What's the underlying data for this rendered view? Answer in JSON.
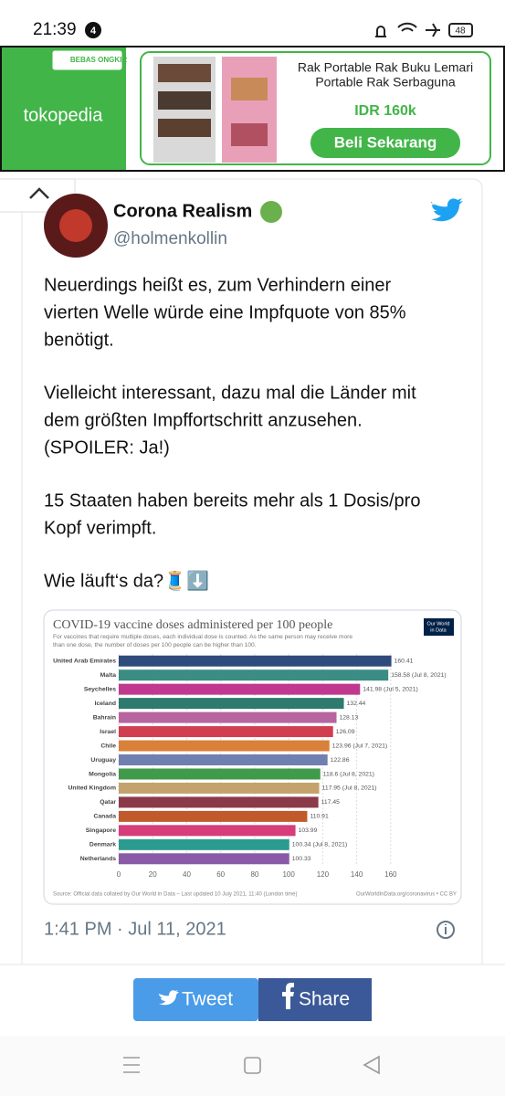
{
  "status_bar": {
    "time": "21:39",
    "notifications": "4",
    "battery": "48"
  },
  "ad": {
    "badge": "BEBAS ONGKIR",
    "brand": "tokopedia",
    "product_lines": [
      "Rak Portable Rak Buku Lemari",
      "Portable Rak Serbaguna"
    ],
    "price": "IDR 160k",
    "button": "Beli Sekarang"
  },
  "tweet": {
    "name": "Corona Realism",
    "handle": "@holmenkollin",
    "paragraphs": [
      [
        "Neuerdings heißt es, zum Verhindern einer",
        "vierten Welle würde eine Impfquote von 85%",
        "benötigt."
      ],
      [
        "Vielleicht interessant, dazu mal die Länder mit",
        "dem größten Impffortschritt anzusehen.",
        "(SPOILER: Ja!)"
      ],
      [
        "15 Staaten haben bereits mehr als 1 Dosis/pro",
        "Kopf verimpft."
      ],
      [
        "Wie läuft‘s da?🧵⬇️"
      ]
    ],
    "timestamp": "1:41 PM · Jul 11, 2021"
  },
  "chart_data": {
    "type": "bar",
    "orientation": "horizontal",
    "title": "COVID-19 vaccine doses administered per 100 people",
    "subtitle": [
      "For vaccines that require multiple doses, each individual dose is counted. As the same person may receive more",
      "than one dose, the number of doses per 100 people can be higher than 100."
    ],
    "logo": [
      "Our World",
      "in Data"
    ],
    "categories": [
      "United Arab Emirates",
      "Malta",
      "Seychelles",
      "Iceland",
      "Bahrain",
      "Israel",
      "Chile",
      "Uruguay",
      "Mongolia",
      "United Kingdom",
      "Qatar",
      "Canada",
      "Singapore",
      "Denmark",
      "Netherlands"
    ],
    "values": [
      160.41,
      158.58,
      141.98,
      132.44,
      128.13,
      126.09,
      123.96,
      122.86,
      118.6,
      117.95,
      117.45,
      110.91,
      103.99,
      100.34,
      100.33
    ],
    "value_labels": [
      "160.41",
      "158.58 (Jul 8, 2021)",
      "141.98 (Jul 5, 2021)",
      "132.44",
      "128.13",
      "126.09",
      "123.96 (Jul 7, 2021)",
      "122.86",
      "118.6 (Jul 8, 2021)",
      "117.95 (Jul 8, 2021)",
      "117.45",
      "110.91",
      "103.99",
      "100.34 (Jul 8, 2021)",
      "100.33"
    ],
    "colors": [
      "#2f4b7c",
      "#3a8c84",
      "#c0398e",
      "#2e7a6e",
      "#b8659f",
      "#d13e4f",
      "#d9803a",
      "#6f7fb0",
      "#3f9a4a",
      "#c4a26c",
      "#8b3a4a",
      "#c15a2a",
      "#d63d7a",
      "#2b9b8f",
      "#8a5aa8"
    ],
    "xlim": [
      0,
      166
    ],
    "xticks": [
      0,
      20,
      40,
      60,
      80,
      100,
      120,
      140,
      160
    ],
    "grid": true,
    "source": "Source: Official data collated by Our World in Data – Last updated 10 July 2021, 11:40 (London time)",
    "source_right": "OurWorldInData.org/coronavirus • CC BY"
  },
  "share": {
    "tweet": "Tweet",
    "share": "Share"
  }
}
